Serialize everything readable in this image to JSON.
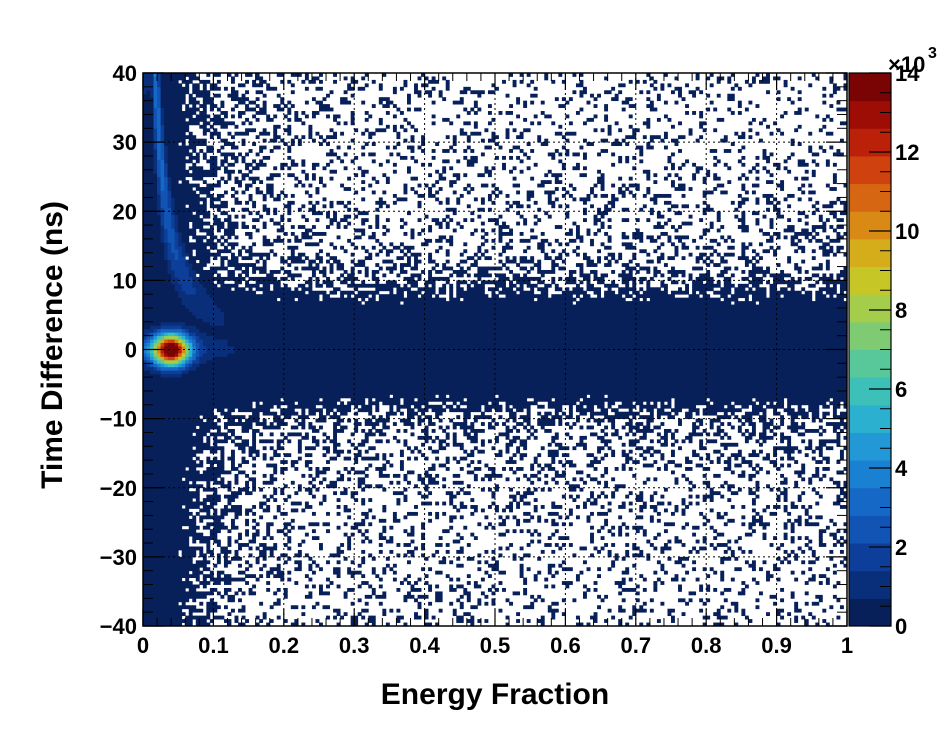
{
  "chart_data": {
    "type": "heatmap",
    "title": "",
    "xlabel": "Energy Fraction",
    "ylabel": "Time Difference (ns)",
    "xlim": [
      0,
      1
    ],
    "ylim": [
      -40,
      40
    ],
    "x_ticks": [
      "0",
      "0.1",
      "0.2",
      "0.3",
      "0.4",
      "0.5",
      "0.6",
      "0.7",
      "0.8",
      "0.9",
      "1"
    ],
    "y_ticks": [
      "−40",
      "−30",
      "−20",
      "−10",
      "0",
      "10",
      "20",
      "30",
      "40"
    ],
    "grid": true,
    "zlim": [
      0,
      14000
    ],
    "colorbar": {
      "ticks": [
        "0",
        "2",
        "4",
        "6",
        "8",
        "10",
        "12",
        "14"
      ],
      "multiplier_base": "×10",
      "multiplier_exponent": "3",
      "palette": [
        "#08205a",
        "#0a2f7a",
        "#0d3f9a",
        "#1154b4",
        "#1568c6",
        "#1a80d2",
        "#2299d6",
        "#2bb1cf",
        "#3cc0b8",
        "#58c79a",
        "#7ecb74",
        "#a4cd4c",
        "#c6c726",
        "#d5ad1a",
        "#d88a15",
        "#d76612",
        "#cf410f",
        "#bb2009",
        "#9e0c06",
        "#7a0303"
      ]
    },
    "features": {
      "peak": {
        "x": 0.04,
        "y": 0.0,
        "z": 14000
      },
      "ridge_description_points": [
        {
          "x": 0.03,
          "y": 25,
          "z": 3500
        },
        {
          "x": 0.05,
          "y": 12,
          "z": 3000
        },
        {
          "x": 0.1,
          "y": 2,
          "z": 1500
        },
        {
          "x": 0.3,
          "y": 0,
          "z": 600
        }
      ]
    }
  }
}
